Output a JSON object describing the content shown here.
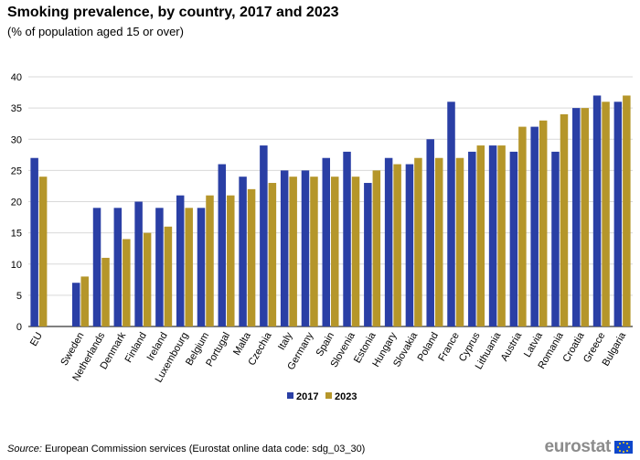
{
  "header": {
    "title": "Smoking prevalence, by country, 2017 and 2023",
    "subtitle": "(% of population aged 15 or over)"
  },
  "footer": {
    "source_label": "Source:",
    "source_text": "European Commission services (Eurostat online data code: sdg_03_30)",
    "logo_text": "eurostat"
  },
  "colors": {
    "s2017": "#2a3fa5",
    "s2023": "#b5962a",
    "grid": "#d9d9d9",
    "axis": "#000000"
  },
  "chart_data": {
    "type": "bar",
    "title": "Smoking prevalence, by country, 2017 and 2023",
    "ylabel": "% of population aged 15 or over",
    "ylim": [
      0,
      40
    ],
    "yticks": [
      0,
      5,
      10,
      15,
      20,
      25,
      30,
      35,
      40
    ],
    "categories": [
      "EU",
      "",
      "Sweden",
      "Netherlands",
      "Denmark",
      "Finland",
      "Ireland",
      "Luxembourg",
      "Belgium",
      "Portugal",
      "Malta",
      "Czechia",
      "Italy",
      "Germany",
      "Spain",
      "Slovenia",
      "Estonia",
      "Hungary",
      "Slovakia",
      "Poland",
      "France",
      "Cyprus",
      "Lithuania",
      "Austria",
      "Latvia",
      "Romania",
      "Croatia",
      "Greece",
      "Bulgaria"
    ],
    "series": [
      {
        "name": "2017",
        "values": [
          27,
          null,
          7,
          19,
          19,
          20,
          19,
          21,
          19,
          26,
          24,
          29,
          25,
          25,
          27,
          28,
          23,
          27,
          26,
          30,
          36,
          28,
          29,
          28,
          32,
          28,
          35,
          37,
          36
        ]
      },
      {
        "name": "2023",
        "values": [
          24,
          null,
          8,
          11,
          14,
          15,
          16,
          19,
          21,
          21,
          22,
          23,
          24,
          24,
          24,
          24,
          25,
          26,
          27,
          27,
          27,
          29,
          29,
          32,
          33,
          34,
          35,
          36,
          37
        ]
      }
    ],
    "legend": [
      "2017",
      "2023"
    ],
    "legend_position": "bottom-center"
  }
}
